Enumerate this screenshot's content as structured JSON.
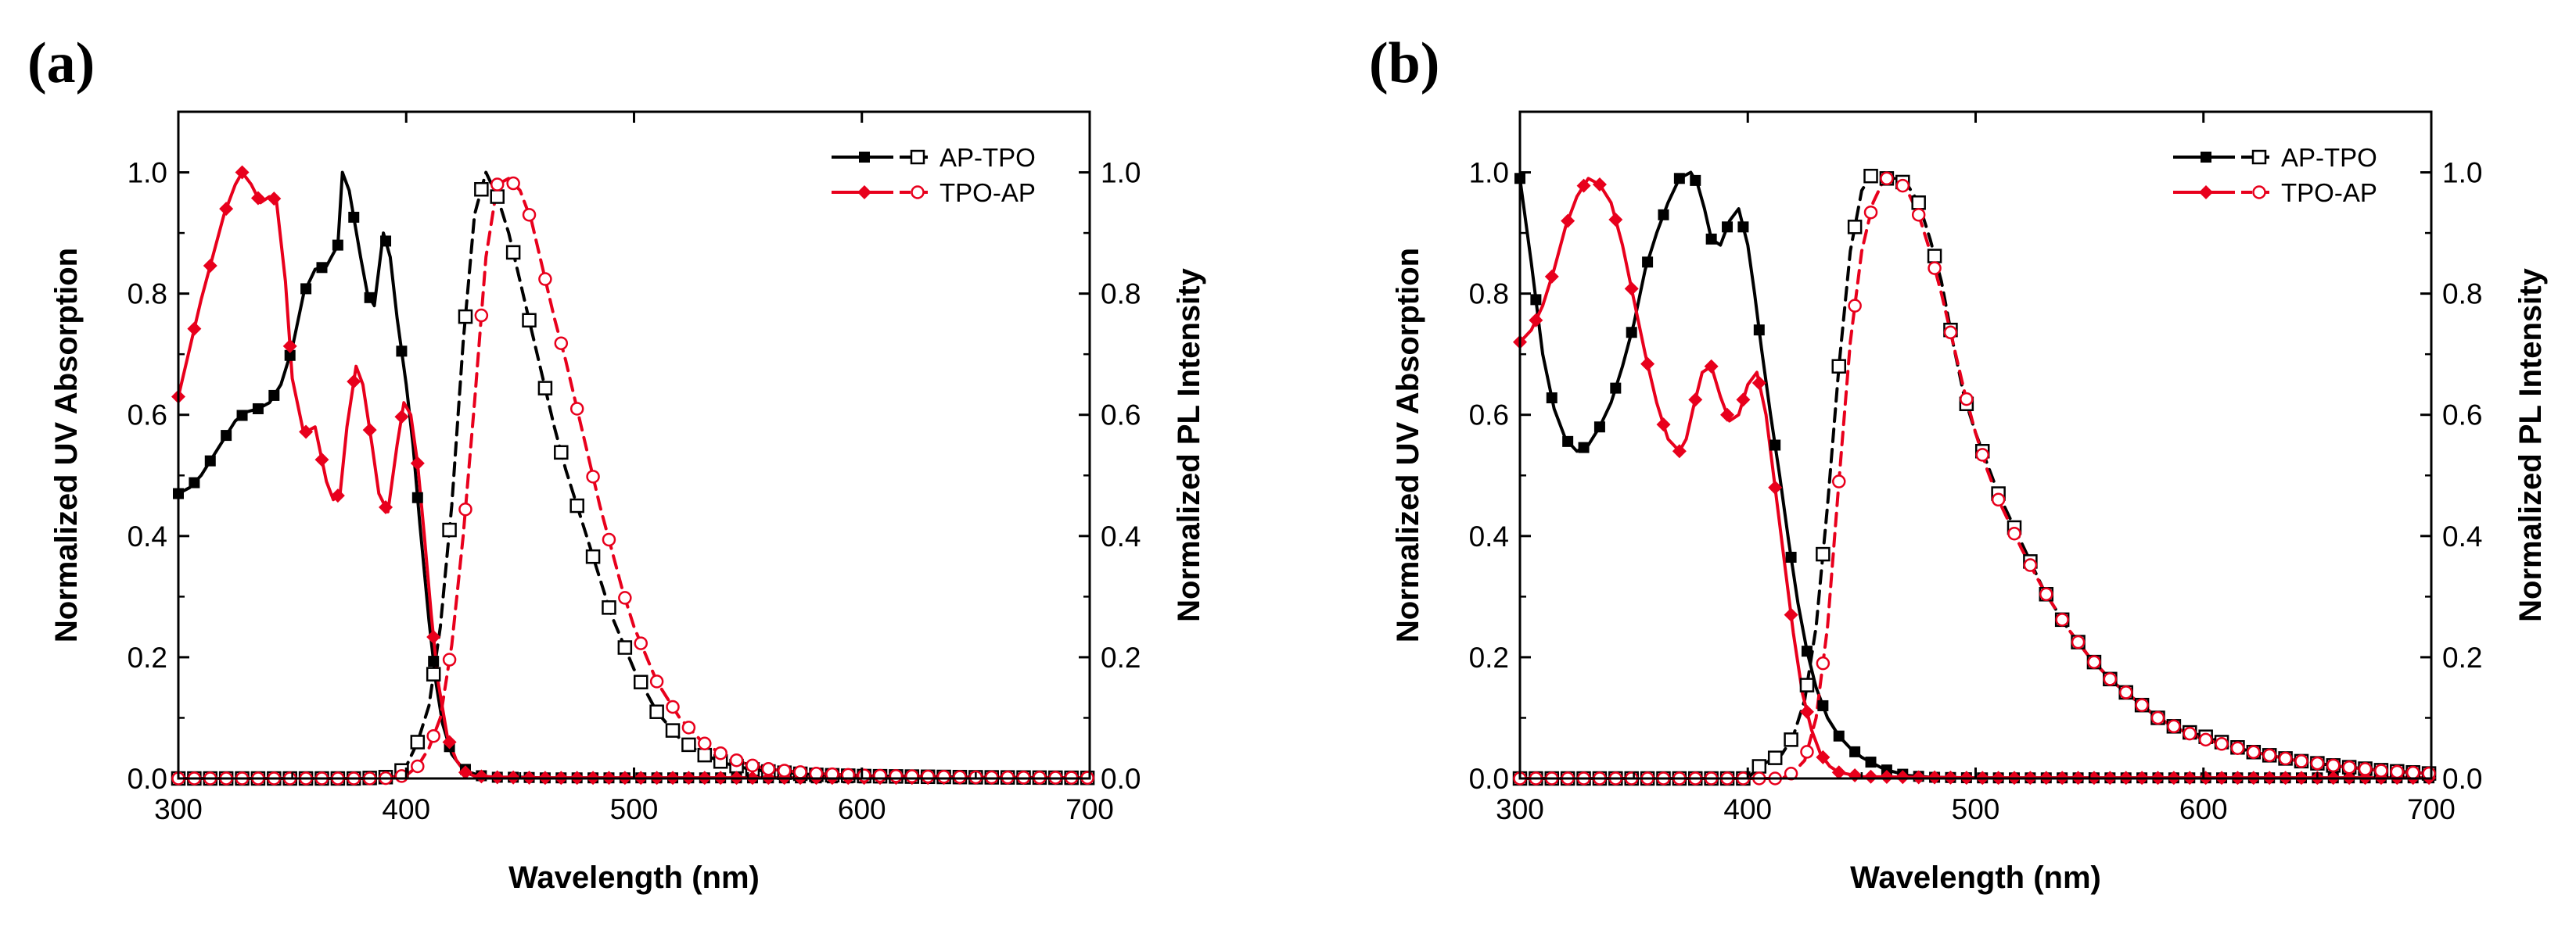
{
  "chart_data": [
    {
      "panel_label": "(a)",
      "type": "line",
      "xlabel": "Wavelength (nm)",
      "ylabel_left": "Normalized UV Absorption",
      "ylabel_right": "Normalized PL Intensity",
      "xlim": [
        300,
        700
      ],
      "ylim": [
        0,
        1.1
      ],
      "x_ticks": [
        "300",
        "400",
        "500",
        "600",
        "700"
      ],
      "y_ticks": [
        "0.0",
        "0.2",
        "0.4",
        "0.6",
        "0.8",
        "1.0"
      ],
      "legend": [
        "AP-TPO",
        "TPO-AP"
      ],
      "legend_position": "top-right",
      "series": [
        {
          "name": "AP-TPO",
          "kind": "absorption",
          "color": "#000000",
          "marker": "filled-square",
          "line": "solid",
          "x": [
            300,
            305,
            310,
            315,
            320,
            325,
            330,
            335,
            340,
            345,
            350,
            355,
            360,
            365,
            370,
            372,
            375,
            380,
            383,
            386,
            390,
            393,
            396,
            400,
            403,
            406,
            410,
            413,
            416,
            420,
            424,
            428,
            432,
            436,
            440,
            450,
            460,
            470,
            480,
            500,
            520,
            550,
            600,
            650,
            700
          ],
          "y": [
            0.47,
            0.48,
            0.5,
            0.53,
            0.56,
            0.59,
            0.605,
            0.61,
            0.62,
            0.65,
            0.71,
            0.8,
            0.84,
            0.845,
            0.88,
            1.0,
            0.97,
            0.86,
            0.8,
            0.78,
            0.9,
            0.86,
            0.76,
            0.65,
            0.55,
            0.42,
            0.26,
            0.16,
            0.09,
            0.04,
            0.02,
            0.01,
            0.005,
            0.003,
            0.002,
            0.002,
            0.001,
            0.001,
            0.001,
            0.001,
            0.001,
            0.001,
            0.001,
            0.001,
            0.001
          ]
        },
        {
          "name": "AP-TPO",
          "kind": "PL",
          "color": "#000000",
          "marker": "open-square",
          "line": "dashed",
          "x": [
            300,
            380,
            395,
            400,
            405,
            410,
            415,
            420,
            425,
            430,
            435,
            440,
            445,
            450,
            455,
            460,
            465,
            470,
            475,
            480,
            485,
            490,
            500,
            510,
            520,
            530,
            540,
            550,
            560,
            580,
            600,
            650,
            700
          ],
          "y": [
            0,
            0,
            0.003,
            0.02,
            0.06,
            0.12,
            0.25,
            0.45,
            0.72,
            0.93,
            1.0,
            0.96,
            0.9,
            0.82,
            0.74,
            0.66,
            0.58,
            0.51,
            0.45,
            0.39,
            0.33,
            0.27,
            0.18,
            0.11,
            0.066,
            0.04,
            0.025,
            0.016,
            0.011,
            0.006,
            0.004,
            0.002,
            0.001
          ]
        },
        {
          "name": "TPO-AP",
          "kind": "absorption",
          "color": "#e8001c",
          "marker": "filled-diamond",
          "line": "solid",
          "x": [
            300,
            305,
            310,
            315,
            320,
            325,
            328,
            332,
            336,
            340,
            343,
            347,
            350,
            355,
            360,
            365,
            368,
            371,
            374,
            378,
            381,
            385,
            388,
            392,
            396,
            399,
            402,
            405,
            408,
            411,
            414,
            418,
            422,
            426,
            430,
            440,
            460,
            500,
            550,
            600,
            650,
            700
          ],
          "y": [
            0.63,
            0.71,
            0.79,
            0.86,
            0.93,
            0.98,
            1.0,
            0.98,
            0.95,
            0.96,
            0.955,
            0.82,
            0.66,
            0.57,
            0.58,
            0.49,
            0.46,
            0.47,
            0.58,
            0.68,
            0.65,
            0.55,
            0.47,
            0.44,
            0.55,
            0.62,
            0.6,
            0.52,
            0.4,
            0.27,
            0.16,
            0.07,
            0.03,
            0.01,
            0.004,
            0.002,
            0.001,
            0.001,
            0.001,
            0.001,
            0.001,
            0.001
          ]
        },
        {
          "name": "TPO-AP",
          "kind": "PL",
          "color": "#e8001c",
          "marker": "open-circle",
          "line": "dashed",
          "x": [
            300,
            390,
            400,
            405,
            410,
            415,
            420,
            425,
            430,
            435,
            440,
            445,
            450,
            455,
            460,
            465,
            470,
            475,
            480,
            485,
            490,
            495,
            500,
            510,
            520,
            530,
            540,
            550,
            560,
            580,
            600,
            650,
            700
          ],
          "y": [
            0,
            0,
            0.005,
            0.02,
            0.05,
            0.1,
            0.22,
            0.4,
            0.62,
            0.86,
            0.98,
            0.99,
            0.97,
            0.92,
            0.84,
            0.76,
            0.69,
            0.61,
            0.53,
            0.45,
            0.38,
            0.31,
            0.25,
            0.16,
            0.1,
            0.06,
            0.037,
            0.023,
            0.015,
            0.008,
            0.005,
            0.002,
            0.001
          ]
        }
      ]
    },
    {
      "panel_label": "(b)",
      "type": "line",
      "xlabel": "Wavelength (nm)",
      "ylabel_left": "Normalized UV Absorption",
      "ylabel_right": "Normalized PL Intensity",
      "xlim": [
        300,
        700
      ],
      "ylim": [
        0,
        1.1
      ],
      "x_ticks": [
        "300",
        "400",
        "500",
        "600",
        "700"
      ],
      "y_ticks": [
        "0.0",
        "0.2",
        "0.4",
        "0.6",
        "0.8",
        "1.0"
      ],
      "legend": [
        "AP-TPO",
        "TPO-AP"
      ],
      "legend_position": "top-right",
      "series": [
        {
          "name": "AP-TPO",
          "kind": "absorption",
          "color": "#000000",
          "marker": "filled-square",
          "line": "solid",
          "x": [
            300,
            305,
            310,
            315,
            320,
            325,
            330,
            335,
            340,
            345,
            350,
            355,
            360,
            365,
            370,
            375,
            378,
            381,
            384,
            388,
            392,
            396,
            400,
            403,
            406,
            410,
            414,
            418,
            422,
            426,
            430,
            435,
            440,
            445,
            450,
            455,
            460,
            465,
            470,
            480,
            500,
            550,
            600,
            650,
            700
          ],
          "y": [
            0.99,
            0.85,
            0.7,
            0.61,
            0.56,
            0.54,
            0.55,
            0.58,
            0.62,
            0.68,
            0.75,
            0.84,
            0.9,
            0.95,
            0.99,
            1.0,
            0.98,
            0.94,
            0.89,
            0.88,
            0.92,
            0.94,
            0.88,
            0.8,
            0.71,
            0.6,
            0.5,
            0.39,
            0.29,
            0.21,
            0.15,
            0.1,
            0.07,
            0.05,
            0.035,
            0.025,
            0.015,
            0.01,
            0.005,
            0.002,
            0.001,
            0.001,
            0.001,
            0.001,
            0.001
          ]
        },
        {
          "name": "AP-TPO",
          "kind": "PL",
          "color": "#000000",
          "marker": "open-square",
          "line": "dashed",
          "x": [
            300,
            400,
            405,
            410,
            415,
            420,
            425,
            430,
            435,
            440,
            445,
            450,
            455,
            460,
            465,
            470,
            475,
            480,
            485,
            490,
            495,
            500,
            505,
            510,
            520,
            530,
            540,
            550,
            560,
            570,
            580,
            590,
            600,
            620,
            640,
            660,
            680,
            700
          ],
          "y": [
            0,
            0,
            0.02,
            0.03,
            0.04,
            0.07,
            0.13,
            0.25,
            0.45,
            0.68,
            0.87,
            0.97,
            1.0,
            0.99,
            0.99,
            0.98,
            0.95,
            0.89,
            0.82,
            0.72,
            0.63,
            0.57,
            0.52,
            0.47,
            0.39,
            0.31,
            0.25,
            0.2,
            0.16,
            0.13,
            0.1,
            0.08,
            0.07,
            0.045,
            0.03,
            0.02,
            0.013,
            0.008
          ]
        },
        {
          "name": "TPO-AP",
          "kind": "absorption",
          "color": "#e8001c",
          "marker": "filled-diamond",
          "line": "solid",
          "x": [
            300,
            305,
            310,
            315,
            320,
            325,
            330,
            335,
            340,
            345,
            350,
            355,
            360,
            365,
            370,
            373,
            376,
            380,
            384,
            388,
            392,
            396,
            400,
            404,
            408,
            412,
            416,
            420,
            424,
            428,
            432,
            436,
            440,
            450,
            500,
            550,
            600,
            650,
            700
          ],
          "y": [
            0.72,
            0.74,
            0.78,
            0.84,
            0.91,
            0.96,
            0.99,
            0.98,
            0.95,
            0.88,
            0.79,
            0.7,
            0.62,
            0.56,
            0.54,
            0.56,
            0.61,
            0.67,
            0.68,
            0.63,
            0.59,
            0.6,
            0.65,
            0.67,
            0.6,
            0.48,
            0.36,
            0.24,
            0.14,
            0.08,
            0.04,
            0.02,
            0.01,
            0.003,
            0.001,
            0.001,
            0.001,
            0.001,
            0.001
          ]
        },
        {
          "name": "TPO-AP",
          "kind": "PL",
          "color": "#e8001c",
          "marker": "open-circle",
          "line": "dashed",
          "x": [
            300,
            415,
            420,
            425,
            430,
            435,
            440,
            445,
            450,
            455,
            460,
            465,
            470,
            475,
            480,
            485,
            490,
            495,
            500,
            505,
            510,
            520,
            530,
            540,
            550,
            560,
            570,
            580,
            590,
            600,
            620,
            640,
            660,
            680,
            700
          ],
          "y": [
            0,
            0,
            0.01,
            0.03,
            0.1,
            0.25,
            0.49,
            0.72,
            0.87,
            0.95,
            0.99,
            0.99,
            0.97,
            0.93,
            0.87,
            0.8,
            0.72,
            0.64,
            0.57,
            0.51,
            0.46,
            0.38,
            0.31,
            0.25,
            0.2,
            0.16,
            0.13,
            0.1,
            0.08,
            0.065,
            0.045,
            0.03,
            0.02,
            0.012,
            0.008
          ]
        }
      ]
    }
  ]
}
